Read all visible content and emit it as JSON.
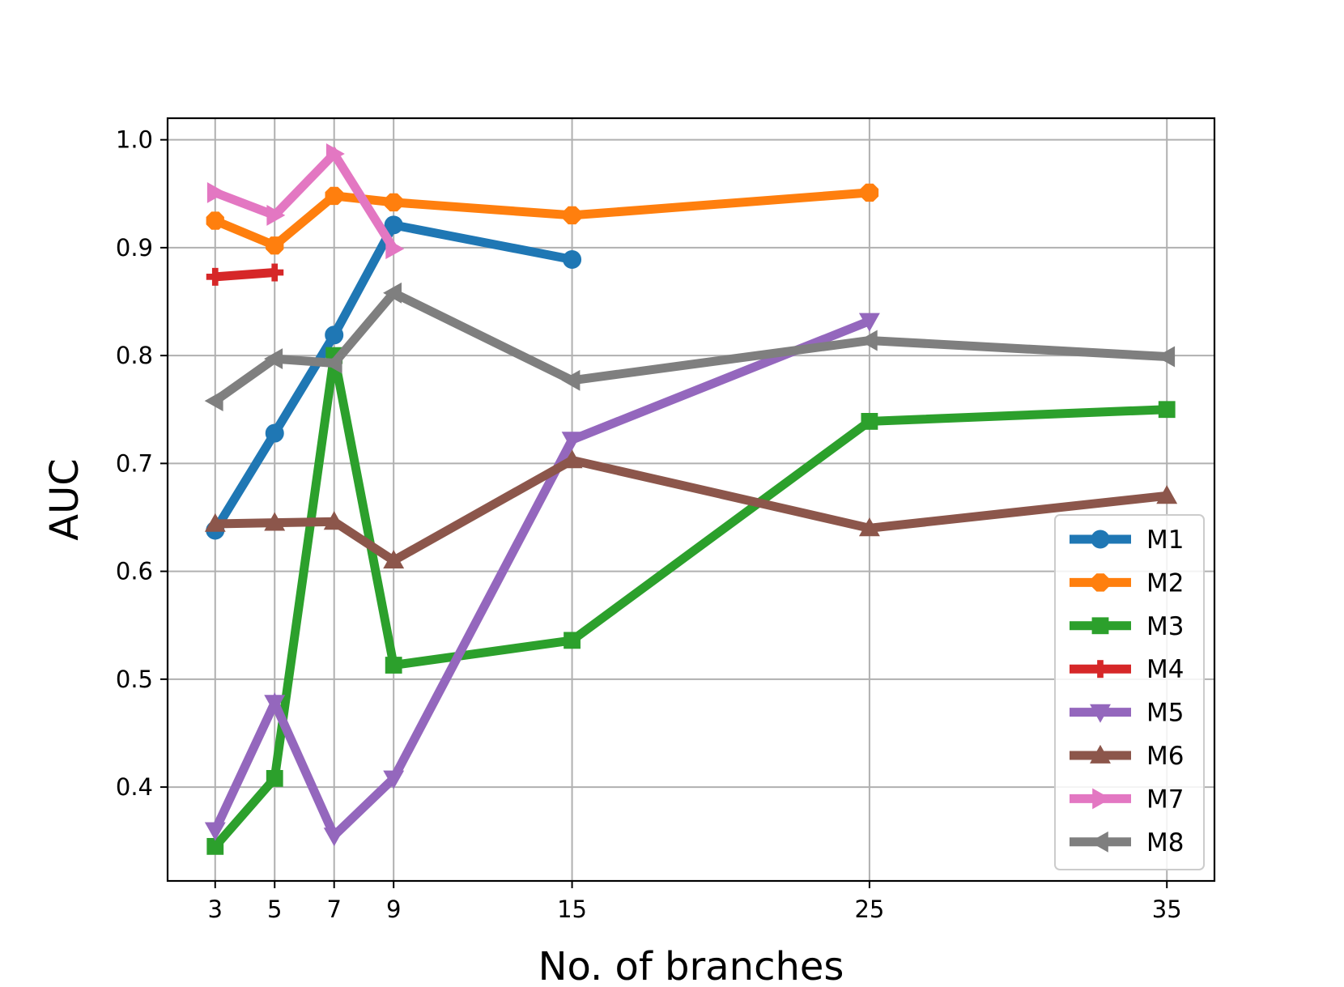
{
  "chart_data": {
    "type": "line",
    "title": "",
    "xlabel": "No. of branches",
    "ylabel": "AUC",
    "x_ticks": [
      3,
      5,
      7,
      9,
      15,
      25,
      35
    ],
    "y_ticks": [
      0.4,
      0.5,
      0.6,
      0.7,
      0.8,
      0.9,
      1.0
    ],
    "y_tick_labels": [
      "0.4",
      "0.5",
      "0.6",
      "0.7",
      "0.8",
      "0.9",
      "1.0"
    ],
    "xlim": [
      1.4,
      36.6
    ],
    "ylim": [
      0.313,
      1.02
    ],
    "grid": true,
    "legend_position": "lower-right",
    "series": [
      {
        "name": "M1",
        "color": "#1f77b4",
        "marker": "circle",
        "x": [
          3,
          5,
          7,
          9,
          15
        ],
        "y": [
          0.638,
          0.728,
          0.819,
          0.921,
          0.889
        ]
      },
      {
        "name": "M2",
        "color": "#ff7f0e",
        "marker": "octagon",
        "x": [
          3,
          5,
          7,
          9,
          15,
          25
        ],
        "y": [
          0.925,
          0.902,
          0.948,
          0.942,
          0.93,
          0.951
        ]
      },
      {
        "name": "M3",
        "color": "#2ca02c",
        "marker": "square",
        "x": [
          3,
          5,
          7,
          9,
          15,
          25,
          35
        ],
        "y": [
          0.345,
          0.408,
          0.8,
          0.513,
          0.536,
          0.739,
          0.75
        ]
      },
      {
        "name": "M4",
        "color": "#d62728",
        "marker": "plus",
        "x": [
          3,
          5
        ],
        "y": [
          0.873,
          0.877
        ]
      },
      {
        "name": "M5",
        "color": "#9467bd",
        "marker": "triangle-down",
        "x": [
          3,
          5,
          7,
          9,
          15,
          25
        ],
        "y": [
          0.36,
          0.478,
          0.355,
          0.408,
          0.722,
          0.832
        ]
      },
      {
        "name": "M6",
        "color": "#8c564b",
        "marker": "triangle-up",
        "x": [
          3,
          5,
          7,
          9,
          15,
          25,
          35
        ],
        "y": [
          0.644,
          0.645,
          0.646,
          0.61,
          0.703,
          0.64,
          0.67
        ]
      },
      {
        "name": "M7",
        "color": "#e377c2",
        "marker": "triangle-right",
        "x": [
          3,
          5,
          7,
          9
        ],
        "y": [
          0.951,
          0.93,
          0.987,
          0.899
        ]
      },
      {
        "name": "M8",
        "color": "#7f7f7f",
        "marker": "triangle-left",
        "x": [
          3,
          5,
          7,
          9,
          15,
          25,
          35
        ],
        "y": [
          0.758,
          0.797,
          0.793,
          0.858,
          0.777,
          0.814,
          0.799
        ]
      }
    ]
  }
}
